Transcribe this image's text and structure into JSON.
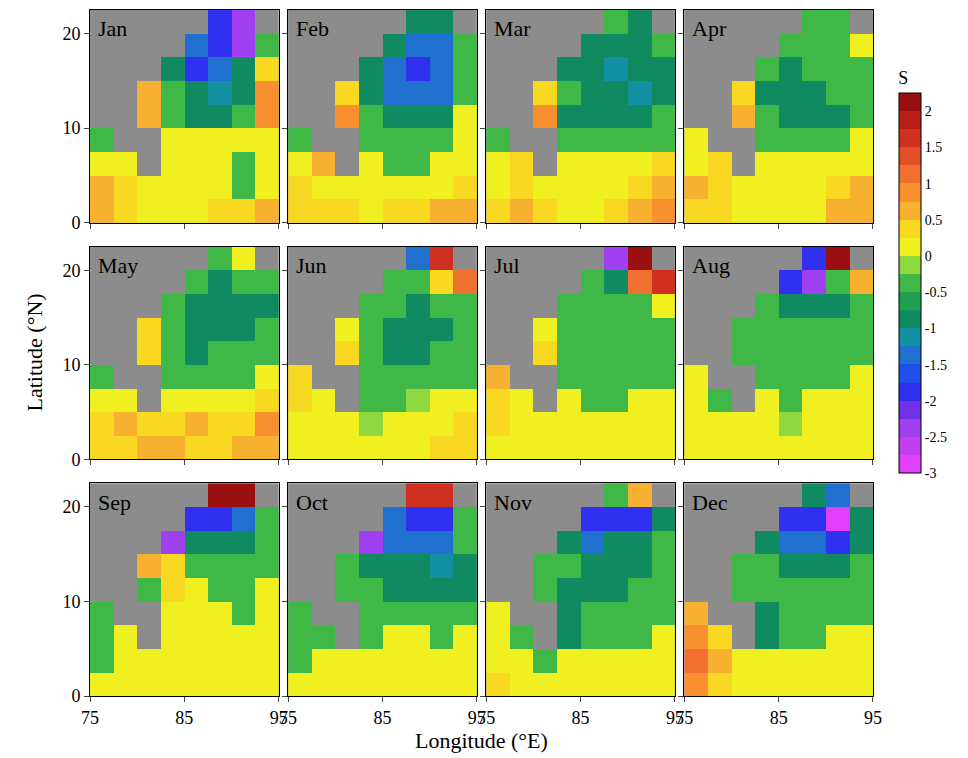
{
  "chart_data": {
    "type": "heatmap",
    "xlabel": "Longitude (°E)",
    "ylabel": "Latitude (°N)",
    "x": [
      76.25,
      78.75,
      81.25,
      83.75,
      86.25,
      88.75,
      91.25,
      93.75
    ],
    "y": [
      1.25,
      3.75,
      6.25,
      8.75,
      11.25,
      13.75,
      16.25,
      18.75,
      21.25
    ],
    "xlim": [
      75,
      95
    ],
    "ylim": [
      0,
      22.5
    ],
    "xticks": [
      75,
      85,
      95
    ],
    "yticks": [
      0,
      10,
      20
    ],
    "colorbar": {
      "title": "S",
      "range": [
        -3,
        2.25
      ],
      "ticks": [
        -3,
        -2.5,
        -2,
        -1.5,
        -1,
        -0.5,
        0,
        0.5,
        1,
        1.5,
        2
      ]
    },
    "panels": [
      {
        "title": "Jan",
        "z": [
          [
            0.5,
            0.3,
            0.2,
            0.2,
            0.2,
            0.3,
            0.3,
            0.5
          ],
          [
            0.5,
            0.4,
            0.2,
            0.2,
            0,
            0,
            -0.3,
            0.2
          ],
          [
            0.2,
            0.2,
            null,
            0,
            0.1,
            0,
            -0.3,
            0
          ],
          [
            -0.5,
            null,
            null,
            0,
            0,
            0,
            0,
            0.2
          ],
          [
            null,
            null,
            0.5,
            -0.3,
            -0.8,
            -0.8,
            -0.5,
            0.8
          ],
          [
            null,
            null,
            0.5,
            -0.5,
            -1,
            -1.2,
            -0.8,
            0.8
          ],
          [
            null,
            null,
            null,
            -1,
            -1.8,
            -1.5,
            -1,
            0.3
          ],
          [
            null,
            null,
            null,
            null,
            -1.5,
            -2,
            -2.3,
            -0.5
          ],
          [
            null,
            null,
            null,
            null,
            null,
            -1.8,
            -2.3,
            null
          ]
        ]
      },
      {
        "title": "Feb",
        "z": [
          [
            0.3,
            0.4,
            0.3,
            0.2,
            0.3,
            0.3,
            0.5,
            0.5
          ],
          [
            0.3,
            0.2,
            0.2,
            0,
            0,
            0,
            0,
            0.3
          ],
          [
            0,
            0.5,
            null,
            0,
            -0.3,
            -0.3,
            0,
            0.2
          ],
          [
            -0.5,
            null,
            null,
            -0.3,
            -0.5,
            -0.3,
            -0.3,
            0
          ],
          [
            null,
            null,
            0.8,
            -0.5,
            -1,
            -0.8,
            -1,
            0
          ],
          [
            null,
            null,
            0.3,
            -0.8,
            -1.3,
            -1.5,
            -1.3,
            -0.3
          ],
          [
            null,
            null,
            null,
            -1,
            -1.5,
            -1.8,
            -1.3,
            -0.5
          ],
          [
            null,
            null,
            null,
            null,
            -1,
            -1.5,
            -1.3,
            -0.5
          ],
          [
            null,
            null,
            null,
            null,
            null,
            -0.8,
            -1,
            null
          ]
        ]
      },
      {
        "title": "Mar",
        "z": [
          [
            0.3,
            0.5,
            0.3,
            0.2,
            0.2,
            0.3,
            0.5,
            0.8
          ],
          [
            0.2,
            0.3,
            0.2,
            0.2,
            0,
            0.2,
            0.3,
            0.5
          ],
          [
            0,
            0.3,
            null,
            0.2,
            0,
            0,
            0.2,
            0.3
          ],
          [
            -0.3,
            null,
            null,
            -0.3,
            -0.5,
            -0.3,
            -0.5,
            -0.3
          ],
          [
            null,
            null,
            0.8,
            -0.8,
            -0.8,
            -1,
            -0.8,
            -0.5
          ],
          [
            null,
            null,
            0.3,
            -0.5,
            -1,
            -0.8,
            -1.2,
            -0.8
          ],
          [
            null,
            null,
            null,
            -0.8,
            -1,
            -1.2,
            -0.8,
            -0.8
          ],
          [
            null,
            null,
            null,
            null,
            -0.8,
            -1,
            -0.8,
            -0.5
          ],
          [
            null,
            null,
            null,
            null,
            null,
            -0.5,
            -0.8,
            null
          ]
        ]
      },
      {
        "title": "Apr",
        "z": [
          [
            0.3,
            0.3,
            0.2,
            0.2,
            0.2,
            0.2,
            0.5,
            0.5
          ],
          [
            0.5,
            0.3,
            0.2,
            0,
            0.2,
            0.2,
            0.3,
            0.5
          ],
          [
            0.2,
            0.3,
            null,
            0,
            0,
            0,
            0,
            0.2
          ],
          [
            0,
            null,
            null,
            -0.3,
            -0.3,
            -0.3,
            -0.3,
            0
          ],
          [
            null,
            null,
            0.5,
            -0.5,
            -0.8,
            -1,
            -0.8,
            -0.3
          ],
          [
            null,
            null,
            0.3,
            -0.8,
            -0.8,
            -0.8,
            -0.5,
            -0.3
          ],
          [
            null,
            null,
            null,
            -0.5,
            -0.8,
            -0.5,
            -0.5,
            -0.3
          ],
          [
            null,
            null,
            null,
            null,
            -0.5,
            -0.5,
            -0.5,
            0
          ],
          [
            null,
            null,
            null,
            null,
            null,
            -0.3,
            -0.3,
            null
          ]
        ]
      },
      {
        "title": "May",
        "z": [
          [
            0.3,
            0.3,
            0.5,
            0.5,
            0.3,
            0.3,
            0.5,
            0.5
          ],
          [
            0.3,
            0.5,
            0.3,
            0.3,
            0.5,
            0.3,
            0.3,
            0.8
          ],
          [
            0.2,
            0.2,
            null,
            0,
            0.2,
            0,
            0,
            0.3
          ],
          [
            -0.3,
            null,
            null,
            -0.3,
            -0.3,
            -0.3,
            -0.3,
            0
          ],
          [
            null,
            null,
            0.3,
            -0.5,
            -0.8,
            -0.5,
            -0.5,
            -0.3
          ],
          [
            null,
            null,
            0.3,
            -0.5,
            -0.8,
            -1,
            -0.8,
            -0.5
          ],
          [
            null,
            null,
            null,
            -0.5,
            -0.8,
            -0.8,
            -0.8,
            -0.8
          ],
          [
            null,
            null,
            null,
            null,
            -0.5,
            -0.8,
            -0.5,
            -0.3
          ],
          [
            null,
            null,
            null,
            null,
            null,
            -0.3,
            0,
            null
          ]
        ]
      },
      {
        "title": "Jun",
        "z": [
          [
            0,
            0,
            0,
            0,
            0,
            0.2,
            0.3,
            0.3
          ],
          [
            0,
            0,
            0,
            -0.2,
            0,
            0,
            0,
            0.3
          ],
          [
            0.3,
            0,
            null,
            -0.3,
            -0.3,
            -0.2,
            0,
            0
          ],
          [
            0.3,
            null,
            null,
            -0.3,
            -0.5,
            -0.5,
            -0.5,
            -0.3
          ],
          [
            null,
            null,
            0.3,
            -0.3,
            -0.8,
            -0.8,
            -0.5,
            -0.5
          ],
          [
            null,
            null,
            0,
            -0.5,
            -0.8,
            -1,
            -0.8,
            -0.5
          ],
          [
            null,
            null,
            null,
            -0.3,
            -0.5,
            -0.8,
            -0.5,
            -0.3
          ],
          [
            null,
            null,
            null,
            null,
            -0.5,
            -0.5,
            0.3,
            1
          ],
          [
            null,
            null,
            null,
            null,
            null,
            -1.5,
            1.5,
            null
          ]
        ]
      },
      {
        "title": "Jul",
        "z": [
          [
            0,
            0,
            0,
            0,
            0,
            0,
            0.2,
            0
          ],
          [
            0.3,
            0,
            0,
            0,
            0,
            0,
            0,
            0
          ],
          [
            0.3,
            0,
            null,
            0,
            -0.3,
            -0.3,
            0,
            0
          ],
          [
            0.5,
            null,
            null,
            -0.3,
            -0.3,
            -0.3,
            -0.3,
            -0.3
          ],
          [
            null,
            null,
            0.3,
            -0.3,
            -0.5,
            -0.5,
            -0.5,
            -0.5
          ],
          [
            null,
            null,
            0,
            -0.3,
            -0.5,
            -0.5,
            -0.3,
            -0.5
          ],
          [
            null,
            null,
            null,
            -0.3,
            -0.3,
            -0.5,
            -0.3,
            0
          ],
          [
            null,
            null,
            null,
            null,
            -0.5,
            -1,
            1,
            1.5
          ],
          [
            null,
            null,
            null,
            null,
            null,
            -2.5,
            2,
            null
          ]
        ]
      },
      {
        "title": "Aug",
        "z": [
          [
            0,
            0,
            0,
            0,
            0,
            0,
            0,
            0
          ],
          [
            0,
            0,
            0,
            0,
            -0.2,
            0,
            0,
            0
          ],
          [
            0,
            -0.3,
            null,
            0,
            -0.3,
            0,
            0,
            0
          ],
          [
            0,
            null,
            null,
            -0.3,
            -0.3,
            -0.3,
            -0.3,
            0
          ],
          [
            null,
            null,
            -0.3,
            -0.3,
            -0.3,
            -0.5,
            -0.3,
            -0.3
          ],
          [
            null,
            null,
            -0.3,
            -0.3,
            -0.5,
            -0.5,
            -0.3,
            -0.3
          ],
          [
            null,
            null,
            null,
            -0.5,
            -0.8,
            -1,
            -0.8,
            -0.3
          ],
          [
            null,
            null,
            null,
            null,
            -2,
            -2.5,
            -0.5,
            0.5
          ],
          [
            null,
            null,
            null,
            null,
            null,
            -2,
            2,
            null
          ]
        ]
      },
      {
        "title": "Sep",
        "z": [
          [
            0,
            0,
            0,
            0,
            0,
            0,
            0,
            0
          ],
          [
            -0.3,
            0,
            0,
            0,
            0,
            0,
            0,
            0
          ],
          [
            -0.3,
            0,
            null,
            0,
            0,
            0,
            0,
            0
          ],
          [
            -0.5,
            null,
            null,
            0,
            0,
            0,
            -0.3,
            0
          ],
          [
            null,
            null,
            -0.3,
            0.3,
            0,
            -0.3,
            -0.3,
            0
          ],
          [
            null,
            null,
            0.5,
            0.3,
            -0.3,
            -0.5,
            -0.3,
            -0.3
          ],
          [
            null,
            null,
            null,
            -2.5,
            -1,
            -0.8,
            -0.8,
            -0.5
          ],
          [
            null,
            null,
            null,
            null,
            -2,
            -1.8,
            -1.5,
            -0.5
          ],
          [
            null,
            null,
            null,
            null,
            null,
            2,
            2,
            null
          ]
        ]
      },
      {
        "title": "Oct",
        "z": [
          [
            0,
            0,
            0,
            0,
            0.2,
            0,
            0,
            0
          ],
          [
            -0.3,
            0,
            0,
            0,
            0,
            0,
            0,
            0.2
          ],
          [
            -0.5,
            -0.3,
            null,
            -0.3,
            0,
            0,
            -0.3,
            0
          ],
          [
            -0.5,
            null,
            null,
            -0.5,
            -0.5,
            -0.3,
            -0.5,
            -0.5
          ],
          [
            null,
            null,
            -0.5,
            -0.5,
            -0.8,
            -0.8,
            -0.8,
            -1
          ],
          [
            null,
            null,
            -0.5,
            -0.8,
            -1,
            -1,
            -1.2,
            -0.8
          ],
          [
            null,
            null,
            null,
            -2.5,
            -1.5,
            -1.5,
            -1.3,
            -0.5
          ],
          [
            null,
            null,
            null,
            null,
            -1.5,
            -2,
            -2,
            -0.5
          ],
          [
            null,
            null,
            null,
            null,
            null,
            1.5,
            1.5,
            null
          ]
        ]
      },
      {
        "title": "Nov",
        "z": [
          [
            0.3,
            0,
            0,
            0,
            0,
            0,
            0,
            0
          ],
          [
            0,
            0,
            -0.3,
            0,
            0,
            0,
            0,
            0
          ],
          [
            0,
            -0.5,
            null,
            -0.8,
            -0.3,
            -0.5,
            -0.3,
            0
          ],
          [
            0,
            null,
            null,
            -0.8,
            -0.5,
            -0.5,
            -0.5,
            -0.3
          ],
          [
            null,
            null,
            -0.5,
            -0.8,
            -0.8,
            -0.8,
            -0.5,
            -0.5
          ],
          [
            null,
            null,
            -0.3,
            -0.5,
            -1,
            -1,
            -0.8,
            -0.5
          ],
          [
            null,
            null,
            null,
            -1,
            -1.3,
            -1,
            -1,
            -0.5
          ],
          [
            null,
            null,
            null,
            null,
            -1.8,
            -2,
            -2,
            -0.8
          ],
          [
            null,
            null,
            null,
            null,
            null,
            -0.5,
            0.5,
            null
          ]
        ]
      },
      {
        "title": "Dec",
        "z": [
          [
            0.8,
            0.3,
            0.2,
            0,
            0,
            0,
            0,
            0
          ],
          [
            1,
            0.5,
            0,
            0,
            0,
            0,
            0,
            0
          ],
          [
            0.8,
            0.3,
            null,
            -1,
            -0.3,
            -0.3,
            0,
            0
          ],
          [
            0.5,
            null,
            null,
            -0.8,
            -0.5,
            -0.3,
            -0.5,
            -0.3
          ],
          [
            null,
            null,
            -0.3,
            -0.5,
            -0.5,
            -0.5,
            -0.5,
            -0.3
          ],
          [
            null,
            null,
            -0.3,
            -0.5,
            -0.8,
            -1,
            -1,
            -0.5
          ],
          [
            null,
            null,
            null,
            -1,
            -1.5,
            -1.5,
            -2,
            -0.8
          ],
          [
            null,
            null,
            null,
            null,
            -1.8,
            -2,
            -2.8,
            -1
          ],
          [
            null,
            null,
            null,
            null,
            null,
            -1,
            -1.5,
            null
          ]
        ]
      }
    ]
  }
}
